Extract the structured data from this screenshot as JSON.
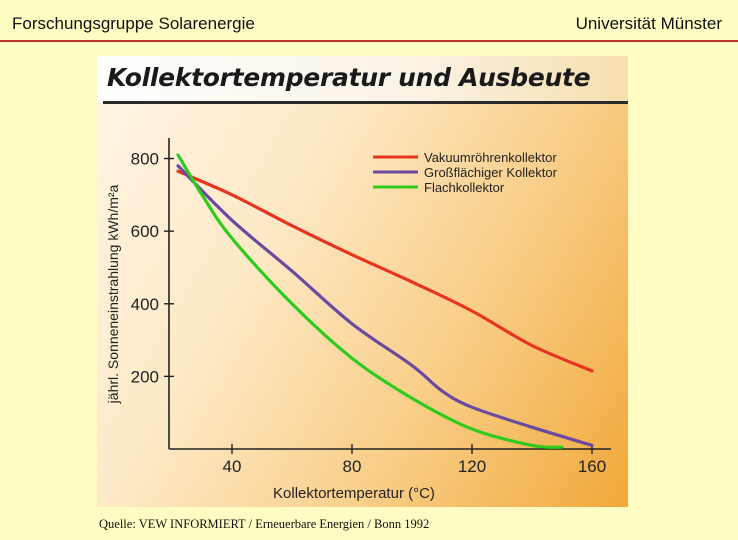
{
  "header": {
    "left": "Forschungsgruppe Solarenergie",
    "right": "Universität Münster"
  },
  "source": "Quelle: VEW  INFORMIERT / Erneuerbare Energien / Bonn 1992",
  "colors": {
    "vakuum": "#e8341f",
    "gross": "#6a4aa0",
    "flach": "#2ecb1e"
  },
  "chart_data": {
    "type": "line",
    "title": "Kollektortemperatur und Ausbeute",
    "xlabel": "Kollektortemperatur (°C)",
    "ylabel": "jährl. Sonneneinstrahlung kWh/m²a",
    "xlim": [
      20,
      165
    ],
    "ylim": [
      0,
      840
    ],
    "xticks": [
      40,
      80,
      120,
      160
    ],
    "yticks": [
      200,
      400,
      600,
      800
    ],
    "grid": false,
    "legend": "top-right",
    "series": [
      {
        "name": "Vakuumröhrenkollektor",
        "color": "#e8341f",
        "x": [
          22,
          40,
          60,
          80,
          100,
          120,
          140,
          160
        ],
        "y": [
          765,
          700,
          615,
          535,
          460,
          380,
          285,
          215
        ]
      },
      {
        "name": "Großflächiger Kollektor",
        "color": "#6a4aa0",
        "x": [
          22,
          40,
          60,
          80,
          100,
          110,
          120,
          140,
          160
        ],
        "y": [
          780,
          630,
          490,
          345,
          230,
          160,
          115,
          60,
          10
        ]
      },
      {
        "name": "Flachkollektor",
        "color": "#2ecb1e",
        "x": [
          22,
          30,
          40,
          60,
          80,
          100,
          120,
          140,
          150
        ],
        "y": [
          810,
          700,
          580,
          400,
          250,
          140,
          55,
          10,
          5
        ]
      }
    ]
  }
}
